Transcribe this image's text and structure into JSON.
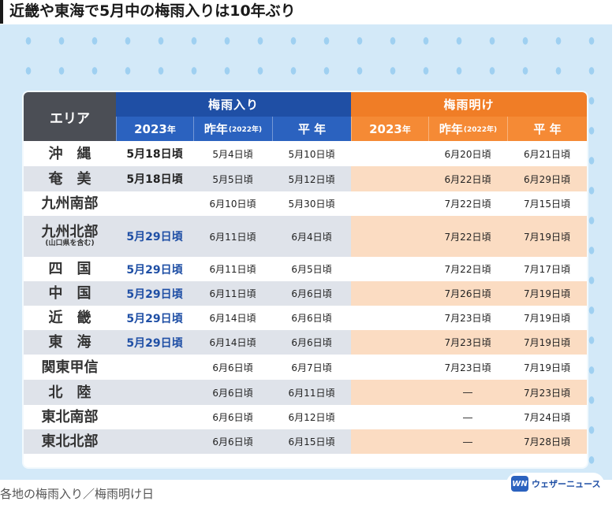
{
  "headline": "近畿や東海で5月中の梅雨入りは10年ぶり",
  "table": {
    "area_header": "エリア",
    "tsuyuiri_header": "梅雨入り",
    "tsuyuake_header": "梅雨明け",
    "sub": {
      "y2023_num": "2023",
      "y2023_unit": "年",
      "prev_main": "昨年",
      "prev_note": "(2022年)",
      "avg": "平 年"
    },
    "rows": [
      {
        "area": "沖　縄",
        "note": "",
        "iri_2023": "5月18日頃",
        "iri_2023_highlight": false,
        "iri_prev": "5月4日頃",
        "iri_avg": "5月10日頃",
        "ake_2023": "",
        "ake_prev": "6月20日頃",
        "ake_avg": "6月21日頃"
      },
      {
        "area": "奄　美",
        "note": "",
        "iri_2023": "5月18日頃",
        "iri_2023_highlight": false,
        "iri_prev": "5月5日頃",
        "iri_avg": "5月12日頃",
        "ake_2023": "",
        "ake_prev": "6月22日頃",
        "ake_avg": "6月29日頃"
      },
      {
        "area": "九州南部",
        "note": "",
        "iri_2023": "",
        "iri_2023_highlight": false,
        "iri_prev": "6月10日頃",
        "iri_avg": "5月30日頃",
        "ake_2023": "",
        "ake_prev": "7月22日頃",
        "ake_avg": "7月15日頃"
      },
      {
        "area": "九州北部",
        "note": "(山口県を含む)",
        "iri_2023": "5月29日頃",
        "iri_2023_highlight": true,
        "iri_prev": "6月11日頃",
        "iri_avg": "6月4日頃",
        "ake_2023": "",
        "ake_prev": "7月22日頃",
        "ake_avg": "7月19日頃"
      },
      {
        "area": "四　国",
        "note": "",
        "iri_2023": "5月29日頃",
        "iri_2023_highlight": true,
        "iri_prev": "6月11日頃",
        "iri_avg": "6月5日頃",
        "ake_2023": "",
        "ake_prev": "7月22日頃",
        "ake_avg": "7月17日頃"
      },
      {
        "area": "中　国",
        "note": "",
        "iri_2023": "5月29日頃",
        "iri_2023_highlight": true,
        "iri_prev": "6月11日頃",
        "iri_avg": "6月6日頃",
        "ake_2023": "",
        "ake_prev": "7月26日頃",
        "ake_avg": "7月19日頃"
      },
      {
        "area": "近　畿",
        "note": "",
        "iri_2023": "5月29日頃",
        "iri_2023_highlight": true,
        "iri_prev": "6月14日頃",
        "iri_avg": "6月6日頃",
        "ake_2023": "",
        "ake_prev": "7月23日頃",
        "ake_avg": "7月19日頃"
      },
      {
        "area": "東　海",
        "note": "",
        "iri_2023": "5月29日頃",
        "iri_2023_highlight": true,
        "iri_prev": "6月14日頃",
        "iri_avg": "6月6日頃",
        "ake_2023": "",
        "ake_prev": "7月23日頃",
        "ake_avg": "7月19日頃"
      },
      {
        "area": "関東甲信",
        "note": "",
        "iri_2023": "",
        "iri_2023_highlight": false,
        "iri_prev": "6月6日頃",
        "iri_avg": "6月7日頃",
        "ake_2023": "",
        "ake_prev": "7月23日頃",
        "ake_avg": "7月19日頃"
      },
      {
        "area": "北　陸",
        "note": "",
        "iri_2023": "",
        "iri_2023_highlight": false,
        "iri_prev": "6月6日頃",
        "iri_avg": "6月11日頃",
        "ake_2023": "",
        "ake_prev": "―",
        "ake_avg": "7月23日頃"
      },
      {
        "area": "東北南部",
        "note": "",
        "iri_2023": "",
        "iri_2023_highlight": false,
        "iri_prev": "6月6日頃",
        "iri_avg": "6月12日頃",
        "ake_2023": "",
        "ake_prev": "―",
        "ake_avg": "7月24日頃"
      },
      {
        "area": "東北北部",
        "note": "",
        "iri_2023": "",
        "iri_2023_highlight": false,
        "iri_prev": "6月6日頃",
        "iri_avg": "6月15日頃",
        "ake_2023": "",
        "ake_prev": "―",
        "ake_avg": "7月28日頃"
      }
    ]
  },
  "logo": {
    "mark": "WN",
    "text": "ウェザーニュース"
  },
  "caption": "各地の梅雨入り／梅雨明け日",
  "colors": {
    "tsuyuiri": "#1f4fa5",
    "tsuyuake": "#f07d26",
    "area_header": "#4b4e55",
    "background": "#d3e9f8"
  }
}
